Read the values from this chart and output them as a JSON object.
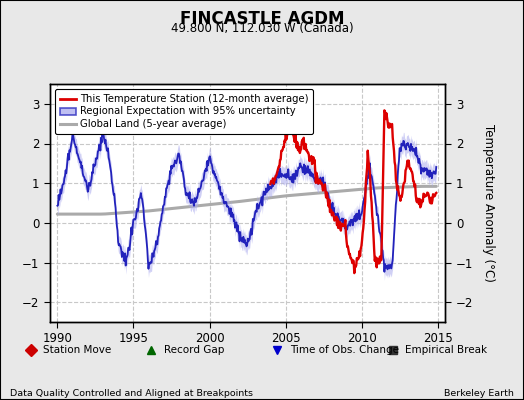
{
  "title": "FINCASTLE AGDM",
  "subtitle": "49.800 N, 112.030 W (Canada)",
  "ylabel": "Temperature Anomaly (°C)",
  "xlabel_left": "Data Quality Controlled and Aligned at Breakpoints",
  "xlabel_right": "Berkeley Earth",
  "ylim": [
    -2.5,
    3.5
  ],
  "xlim": [
    1989.5,
    2015.5
  ],
  "xticks": [
    1990,
    1995,
    2000,
    2005,
    2010,
    2015
  ],
  "yticks": [
    -2,
    -1,
    0,
    1,
    2,
    3
  ],
  "bg_color": "#e8e8e8",
  "plot_bg_color": "#ffffff",
  "grid_color": "#c8c8c8",
  "station_color": "#dd0000",
  "regional_color": "#2222bb",
  "regional_fill_color": "#aaaaee",
  "global_color": "#aaaaaa",
  "legend_items": [
    {
      "label": "This Temperature Station (12-month average)",
      "color": "#dd0000",
      "lw": 2.0
    },
    {
      "label": "Regional Expectation with 95% uncertainty",
      "color": "#2222bb",
      "lw": 1.5
    },
    {
      "label": "Global Land (5-year average)",
      "color": "#aaaaaa",
      "lw": 2.0
    }
  ],
  "bottom_legend": [
    {
      "label": "Station Move",
      "marker": "D",
      "color": "#cc0000"
    },
    {
      "label": "Record Gap",
      "marker": "^",
      "color": "#006600"
    },
    {
      "label": "Time of Obs. Change",
      "marker": "v",
      "color": "#0000cc"
    },
    {
      "label": "Empirical Break",
      "marker": "s",
      "color": "#333333"
    }
  ],
  "regional_cpts_t": [
    1990,
    1990.5,
    1991,
    1991.5,
    1992,
    1992.5,
    1993,
    1993.3,
    1993.8,
    1994,
    1994.5,
    1995,
    1995.5,
    1996,
    1996.5,
    1997,
    1997.5,
    1998,
    1998.5,
    1999,
    1999.5,
    2000,
    2000.5,
    2001,
    2001.5,
    2002,
    2002.5,
    2003,
    2003.5,
    2004,
    2004.5,
    2005,
    2005.5,
    2006,
    2006.5,
    2007,
    2007.5,
    2008,
    2008.5,
    2009,
    2009.5,
    2010,
    2010.5,
    2011,
    2011.5,
    2012,
    2012.5,
    2013,
    2013.5,
    2014,
    2014.5
  ],
  "regional_cpts_v": [
    0.4,
    1.2,
    2.2,
    1.5,
    0.8,
    1.5,
    2.3,
    1.8,
    0.5,
    -0.5,
    -1.0,
    0.0,
    0.8,
    -1.1,
    -0.6,
    0.5,
    1.4,
    1.7,
    0.7,
    0.5,
    1.0,
    1.7,
    1.0,
    0.5,
    0.2,
    -0.3,
    -0.6,
    0.2,
    0.7,
    0.9,
    1.2,
    1.2,
    1.1,
    1.4,
    1.3,
    1.1,
    1.0,
    0.4,
    0.1,
    -0.1,
    0.1,
    0.2,
    1.5,
    0.3,
    -1.1,
    -1.1,
    1.9,
    2.0,
    1.8,
    1.3,
    1.3
  ],
  "station_cpts_t": [
    2004,
    2004.5,
    2005,
    2005.3,
    2005.6,
    2005.9,
    2006.2,
    2006.5,
    2006.8,
    2007,
    2007.3,
    2007.6,
    2008,
    2008.3,
    2008.6,
    2008.9,
    2009,
    2009.3,
    2009.6,
    2009.9,
    2010,
    2010.2,
    2010.4,
    2010.6,
    2010.8,
    2011,
    2011.3,
    2011.5,
    2011.7,
    2012,
    2012.3,
    2012.6,
    2013,
    2013.3,
    2013.6,
    2013.9,
    2014,
    2014.3,
    2014.6,
    2014.9
  ],
  "station_cpts_v": [
    1.0,
    1.3,
    2.2,
    2.5,
    2.1,
    1.8,
    2.0,
    1.7,
    1.6,
    1.2,
    1.0,
    0.8,
    0.3,
    0.1,
    -0.2,
    0.0,
    -0.5,
    -0.9,
    -1.1,
    -0.7,
    -0.5,
    0.4,
    1.8,
    0.8,
    -0.5,
    -1.1,
    -0.8,
    3.0,
    2.5,
    2.4,
    0.9,
    0.6,
    1.5,
    1.3,
    0.6,
    0.5,
    0.6,
    0.7,
    0.6,
    0.7
  ],
  "global_cpts_t": [
    1990,
    1993,
    1996,
    1999,
    2002,
    2005,
    2008,
    2011,
    2014
  ],
  "global_cpts_v": [
    0.22,
    0.22,
    0.3,
    0.42,
    0.54,
    0.68,
    0.78,
    0.88,
    0.92
  ]
}
